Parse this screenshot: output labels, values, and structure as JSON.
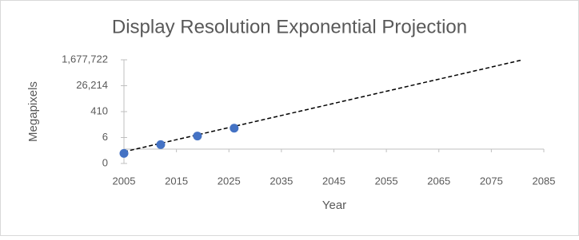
{
  "chart_data": {
    "type": "scatter",
    "title": "Display Resolution Exponential Projection",
    "x_label": "Year",
    "y_label": "Megapixels",
    "x": [
      2005,
      2012,
      2019,
      2026
    ],
    "series": [
      {
        "color": "#4472c4",
        "values": [
          0.5,
          2.05,
          8.2,
          28.7
        ]
      }
    ],
    "trendline": {
      "x": [
        2005,
        2081
      ],
      "values": [
        0.65,
        1677722
      ],
      "color": "#000000",
      "dashed": true
    },
    "xlim": [
      2005,
      2085
    ],
    "xticks": [
      2005,
      2015,
      2025,
      2035,
      2045,
      2055,
      2065,
      2075,
      2085
    ],
    "ylim": [
      0.1,
      1677721.6
    ],
    "yscale": "log",
    "yticks": [
      {
        "value": 0.1,
        "label": "0"
      },
      {
        "value": 6.4,
        "label": "6"
      },
      {
        "value": 409.6,
        "label": "410"
      },
      {
        "value": 26214.4,
        "label": "26,214"
      },
      {
        "value": 1677721.6,
        "label": "1,677,722"
      }
    ],
    "x_axis_crosses_at": 1
  }
}
